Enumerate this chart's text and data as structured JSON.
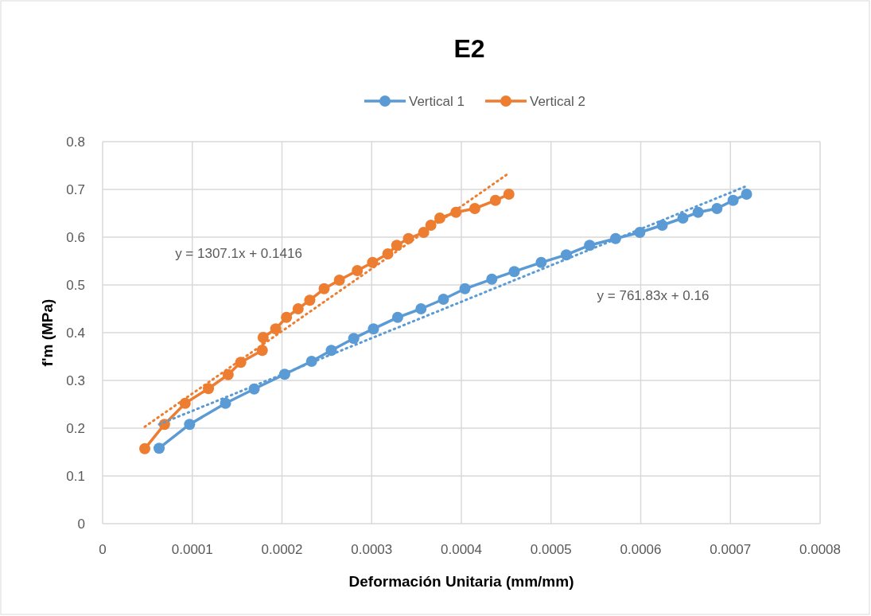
{
  "chart_data": {
    "type": "line",
    "title": "E2",
    "xlabel": "Deformación Unitaria (mm/mm)",
    "ylabel": "f'm (MPa)",
    "xlim": [
      0,
      0.0008
    ],
    "xticks": [
      0,
      0.0001,
      0.0002,
      0.0003,
      0.0004,
      0.0005,
      0.0006,
      0.0007,
      0.0008
    ],
    "ylim": [
      0,
      0.8
    ],
    "yticks": [
      0,
      0.1,
      0.2,
      0.3,
      0.4,
      0.5,
      0.6,
      0.7,
      0.8
    ],
    "grid": true,
    "legend": "top",
    "marker": "circle",
    "line_style": "solid",
    "series": [
      {
        "name": "Vertical 1",
        "color": "#5b9bd5",
        "x": [
          6.3e-05,
          9.7e-05,
          0.000137,
          0.000169,
          0.000203,
          0.000233,
          0.000255,
          0.00028,
          0.000302,
          0.000329,
          0.000355,
          0.00038,
          0.000404,
          0.000434,
          0.000459,
          0.000489,
          0.000517,
          0.000543,
          0.000572,
          0.000599,
          0.000624,
          0.000647,
          0.000664,
          0.000685,
          0.000703,
          0.000718
        ],
        "values": [
          0.158,
          0.208,
          0.252,
          0.282,
          0.313,
          0.34,
          0.363,
          0.388,
          0.408,
          0.432,
          0.45,
          0.47,
          0.492,
          0.512,
          0.528,
          0.547,
          0.563,
          0.583,
          0.597,
          0.61,
          0.625,
          0.64,
          0.652,
          0.66,
          0.677,
          0.69
        ]
      },
      {
        "name": "Vertical 2",
        "color": "#ed7d31",
        "x": [
          4.7e-05,
          6.9e-05,
          9.2e-05,
          0.000118,
          0.00014,
          0.000154,
          0.000178,
          0.000179,
          0.000193,
          0.000205,
          0.000218,
          0.000231,
          0.000247,
          0.000264,
          0.000284,
          0.000301,
          0.000318,
          0.000328,
          0.000341,
          0.000358,
          0.000366,
          0.000376,
          0.000394,
          0.000415,
          0.000438,
          0.000453
        ],
        "values": [
          0.157,
          0.208,
          0.252,
          0.283,
          0.312,
          0.338,
          0.363,
          0.39,
          0.408,
          0.432,
          0.45,
          0.468,
          0.492,
          0.51,
          0.53,
          0.547,
          0.565,
          0.583,
          0.597,
          0.61,
          0.625,
          0.64,
          0.652,
          0.66,
          0.677,
          0.69
        ]
      },
      {
        "type": "line",
        "color": "#5b9bd5",
        "line_style": "dotted",
        "marker": "none",
        "x": [
          6.3e-05,
          0.000718
        ],
        "values": [
          0.208,
          0.707
        ]
      },
      {
        "type": "line",
        "color": "#ed7d31",
        "line_style": "dotted",
        "marker": "none",
        "x": [
          4.7e-05,
          0.000453
        ],
        "values": [
          0.203,
          0.734
        ]
      }
    ],
    "annotations": [
      "y = 761.83x + 0.16",
      "y = 1307.1x + 0.1416"
    ]
  }
}
